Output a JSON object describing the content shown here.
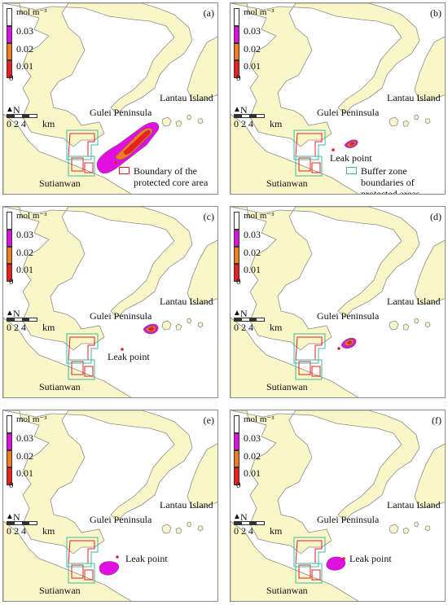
{
  "colors": {
    "land": "#fbf6c8",
    "coast": "#8c8c8c",
    "sea": "#ffffff",
    "level_03": "#e010e0",
    "level_02": "#f47a20",
    "level_01": "#ee1f1f",
    "core_boundary": "#e02020",
    "buffer_boundary": "#3cb8a0"
  },
  "legend": {
    "unit": "mol m⁻³",
    "ticks": [
      "0.03",
      "0.02",
      "0.01",
      "0"
    ]
  },
  "place_labels": {
    "lantau": "Lantau Island",
    "gulei": "Gulei Peninsula",
    "sutianwan": "Sutianwan",
    "leak": "Leak point"
  },
  "scale_bar": {
    "north": "N",
    "ticks": "0 2 4",
    "unit": "km"
  },
  "boundary_legend": {
    "core": "Boundary of the protected core area",
    "buffer": "Buffer zone boundaries of protected areas"
  },
  "panels": [
    {
      "letter": "(a)",
      "plume_state": "elongated plume extending north-east from leak point"
    },
    {
      "letter": "(b)",
      "plume_state": "small plume near leak point"
    },
    {
      "letter": "(c)",
      "plume_state": "small plume east of leak point"
    },
    {
      "letter": "(d)",
      "plume_state": "small plume south of Gulei Peninsula"
    },
    {
      "letter": "(e)",
      "plume_state": "magenta-only plume near leak point"
    },
    {
      "letter": "(f)",
      "plume_state": "magenta-only plume near leak point"
    }
  ]
}
